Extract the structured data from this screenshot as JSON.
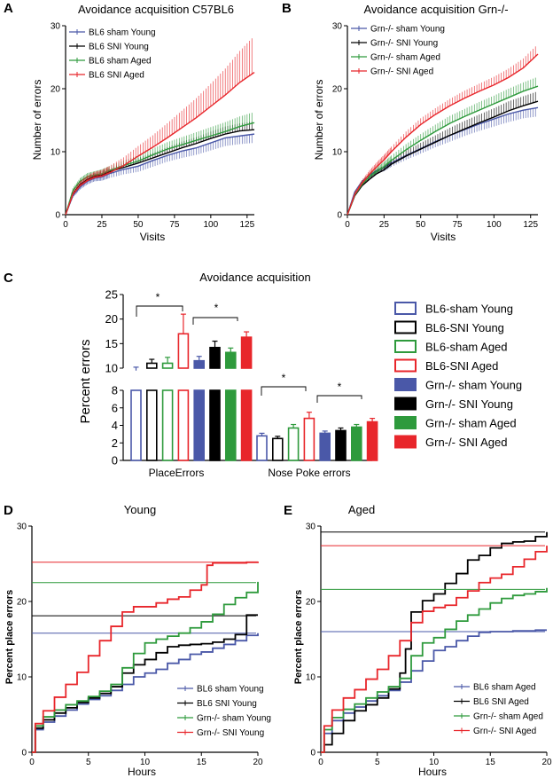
{
  "colors": {
    "blue": "#4a58a8",
    "black": "#000000",
    "green": "#2e9a3c",
    "red": "#e8262b"
  },
  "panels": {
    "A": {
      "letter": "A",
      "title": "Avoidance acquisition C57BL6",
      "xlabel": "Visits",
      "ylabel": "Number of errors",
      "xlim": [
        0,
        130
      ],
      "ylim": [
        0,
        30
      ],
      "xticks": [
        0,
        25,
        50,
        75,
        100,
        125
      ],
      "yticks": [
        0,
        10,
        20,
        30
      ],
      "series": [
        {
          "name": "BL6 sham Young",
          "color": "blue",
          "x": [
            0,
            5,
            10,
            15,
            20,
            25,
            30,
            40,
            50,
            60,
            70,
            80,
            90,
            100,
            110,
            120,
            130
          ],
          "y": [
            0,
            3,
            4.4,
            5.3,
            5.8,
            6,
            6.5,
            7.2,
            7.7,
            8.6,
            9.4,
            10.1,
            10.6,
            11.4,
            12.2,
            12.5,
            12.8
          ],
          "err": [
            0,
            0.3,
            0.4,
            0.5,
            0.5,
            0.6,
            0.7,
            0.8,
            0.9,
            1,
            1,
            1.1,
            1.1,
            1.2,
            1.3,
            1.3,
            1.4
          ]
        },
        {
          "name": "BL6 SNI Young",
          "color": "black",
          "x": [
            0,
            5,
            10,
            15,
            20,
            25,
            30,
            40,
            50,
            60,
            70,
            80,
            90,
            100,
            110,
            120,
            130
          ],
          "y": [
            0,
            3.3,
            4.8,
            5.6,
            6.1,
            6.3,
            6.8,
            7.5,
            8.2,
            9,
            9.8,
            10.6,
            11.3,
            12.1,
            12.8,
            13.3,
            13.5
          ],
          "err": [
            0,
            0.3,
            0.4,
            0.5,
            0.5,
            0.6,
            0.6,
            0.7,
            0.8,
            0.8,
            0.9,
            1,
            1,
            1.1,
            1.2,
            1.2,
            1.3
          ]
        },
        {
          "name": "BL6 sham Aged",
          "color": "green",
          "x": [
            0,
            5,
            10,
            15,
            20,
            25,
            30,
            40,
            50,
            60,
            70,
            80,
            90,
            100,
            110,
            120,
            130
          ],
          "y": [
            0,
            3.8,
            5.3,
            6,
            6.3,
            6.5,
            7,
            7.8,
            8.5,
            9.5,
            10.4,
            11.1,
            11.8,
            12.5,
            13.2,
            14,
            14.6
          ],
          "err": [
            0,
            0.4,
            0.5,
            0.6,
            0.6,
            0.7,
            0.7,
            0.8,
            0.9,
            1,
            1.1,
            1.2,
            1.3,
            1.4,
            1.5,
            1.6,
            1.7
          ]
        },
        {
          "name": "BL6 SNI Aged",
          "color": "red",
          "x": [
            0,
            5,
            10,
            15,
            20,
            25,
            30,
            40,
            50,
            60,
            70,
            80,
            90,
            100,
            110,
            120,
            130
          ],
          "y": [
            0,
            3.2,
            4.6,
            5.4,
            5.9,
            6.1,
            6.6,
            7.8,
            9.3,
            10.7,
            12.2,
            13.8,
            15.4,
            17.2,
            19,
            21,
            22.6
          ],
          "err": [
            0,
            0.5,
            0.7,
            0.8,
            0.9,
            1,
            1.1,
            1.3,
            1.6,
            1.9,
            2.3,
            2.7,
            3.1,
            3.6,
            4.2,
            5,
            5.8
          ]
        }
      ]
    },
    "B": {
      "letter": "B",
      "title": "Avoidance acquisition Grn-/-",
      "xlabel": "Visits",
      "ylabel": "Number of errors",
      "xlim": [
        0,
        130
      ],
      "ylim": [
        0,
        30
      ],
      "xticks": [
        0,
        25,
        50,
        75,
        100,
        125
      ],
      "yticks": [
        0,
        10,
        20,
        30
      ],
      "series": [
        {
          "name": "Grn-/- sham Young",
          "color": "blue",
          "x": [
            0,
            5,
            10,
            15,
            20,
            25,
            30,
            40,
            50,
            60,
            70,
            80,
            90,
            100,
            110,
            120,
            130
          ],
          "y": [
            0,
            3.6,
            5.3,
            6.3,
            7,
            7.5,
            8.2,
            9.4,
            10.5,
            11.6,
            12.6,
            13.5,
            14.4,
            15.2,
            16,
            16.6,
            17
          ],
          "err": [
            0,
            0.3,
            0.4,
            0.5,
            0.5,
            0.6,
            0.6,
            0.7,
            0.8,
            0.9,
            1,
            1,
            1.1,
            1.2,
            1.3,
            1.3,
            1.4
          ]
        },
        {
          "name": "Grn-/- SNI Young",
          "color": "black",
          "x": [
            0,
            5,
            10,
            15,
            20,
            25,
            30,
            40,
            50,
            60,
            70,
            80,
            90,
            100,
            110,
            120,
            130
          ],
          "y": [
            0,
            3,
            4.6,
            5.6,
            6.5,
            7.1,
            8,
            9.3,
            10.4,
            11.5,
            12.6,
            13.6,
            14.6,
            15.5,
            16.5,
            17.3,
            18
          ],
          "err": [
            0,
            0.4,
            0.5,
            0.6,
            0.7,
            0.7,
            0.8,
            0.9,
            1,
            1.1,
            1.2,
            1.3,
            1.3,
            1.4,
            1.5,
            1.5,
            1.6
          ]
        },
        {
          "name": "Grn-/- sham Aged",
          "color": "green",
          "x": [
            0,
            5,
            10,
            15,
            20,
            25,
            30,
            40,
            50,
            60,
            70,
            80,
            90,
            100,
            110,
            120,
            130
          ],
          "y": [
            0,
            3.1,
            4.8,
            6,
            6.8,
            7.6,
            8.6,
            10.3,
            11.8,
            13.2,
            14.5,
            15.6,
            16.6,
            17.6,
            18.6,
            19.6,
            20.4
          ],
          "err": [
            0,
            0.4,
            0.5,
            0.6,
            0.7,
            0.8,
            0.8,
            0.9,
            1,
            1.1,
            1.2,
            1.2,
            1.3,
            1.3,
            1.4,
            1.4,
            1.5
          ]
        },
        {
          "name": "Grn-/- SNI Aged",
          "color": "red",
          "x": [
            0,
            5,
            10,
            15,
            20,
            25,
            30,
            40,
            50,
            60,
            70,
            80,
            90,
            100,
            110,
            120,
            130
          ],
          "y": [
            0,
            3.2,
            5,
            6.4,
            7.6,
            8.7,
            10,
            12.3,
            14.3,
            15.9,
            17.3,
            18.5,
            19.6,
            20.6,
            21.8,
            23.3,
            25.5
          ],
          "err": [
            0,
            0.4,
            0.5,
            0.6,
            0.7,
            0.8,
            0.8,
            0.9,
            1,
            1,
            1.1,
            1.2,
            1.2,
            1.3,
            1.4,
            1.5,
            1.6
          ]
        }
      ]
    },
    "C": {
      "letter": "C",
      "title": "Avoidance acquisition",
      "ylabel": "Percent errors",
      "groups": [
        "PlaceErrors",
        "Nose Poke errors"
      ],
      "yticks_upper": [
        10,
        15,
        20,
        25
      ],
      "yticks_lower": [
        0,
        2,
        4,
        6,
        8
      ],
      "sig": "*",
      "series": [
        {
          "name": "BL6-sham Young",
          "color": "blue",
          "filled": false,
          "values": [
            9.5,
            2.8
          ],
          "err": [
            0.7,
            0.3
          ]
        },
        {
          "name": "BL6-SNI Young",
          "color": "black",
          "filled": false,
          "values": [
            11,
            2.5
          ],
          "err": [
            0.8,
            0.25
          ]
        },
        {
          "name": "BL6-sham Aged",
          "color": "green",
          "filled": false,
          "values": [
            11,
            3.7
          ],
          "err": [
            1.2,
            0.4
          ]
        },
        {
          "name": "BL6-SNI Aged",
          "color": "red",
          "filled": false,
          "values": [
            17,
            4.8
          ],
          "err": [
            4,
            0.7
          ]
        },
        {
          "name": "Grn-/- sham Young",
          "color": "blue",
          "filled": true,
          "values": [
            11.5,
            3.1
          ],
          "err": [
            0.9,
            0.25
          ]
        },
        {
          "name": "Grn-/- SNI Young",
          "color": "black",
          "filled": true,
          "values": [
            14.2,
            3.4
          ],
          "err": [
            1.3,
            0.3
          ]
        },
        {
          "name": "Grn-/- sham Aged",
          "color": "green",
          "filled": true,
          "values": [
            13.2,
            3.8
          ],
          "err": [
            0.9,
            0.3
          ]
        },
        {
          "name": "Grn-/- SNI Aged",
          "color": "red",
          "filled": true,
          "values": [
            16.3,
            4.4
          ],
          "err": [
            1.1,
            0.4
          ]
        }
      ]
    },
    "D": {
      "letter": "D",
      "title": "Young",
      "xlabel": "Hours",
      "ylabel": "Percent place errors",
      "xlim": [
        0,
        20
      ],
      "ylim": [
        0,
        30
      ],
      "xticks": [
        0,
        5,
        10,
        15,
        20
      ],
      "yticks": [
        0,
        10,
        20,
        30
      ],
      "series": [
        {
          "name": "BL6 sham Young",
          "color": "blue",
          "x": [
            0,
            0.3,
            1,
            2,
            3,
            4,
            5,
            6,
            7,
            8,
            9,
            10,
            11,
            12,
            13,
            14,
            15,
            16,
            17,
            18,
            19,
            20
          ],
          "y": [
            0,
            3,
            4,
            4.8,
            5.6,
            6.4,
            7,
            7.5,
            8.2,
            9,
            10,
            10.5,
            11,
            11.8,
            12.3,
            13,
            13.3,
            13.8,
            14.3,
            14.8,
            15.5,
            15.8
          ],
          "plateau": 15.8
        },
        {
          "name": "BL6 SNI Young",
          "color": "black",
          "x": [
            0,
            0.3,
            1,
            2,
            3,
            4,
            5,
            6,
            7,
            8,
            9,
            10,
            11,
            12,
            13,
            14,
            15,
            16,
            17,
            18,
            19,
            20
          ],
          "y": [
            0,
            3.2,
            4.3,
            5.2,
            5.9,
            6.6,
            7.2,
            7.8,
            8.7,
            10.5,
            11.6,
            12.3,
            13.2,
            14,
            14.2,
            14.3,
            14.4,
            14.6,
            15,
            15.6,
            18.2,
            18.2
          ],
          "plateau": 18.1
        },
        {
          "name": "Grn-/- sham Young",
          "color": "green",
          "x": [
            0,
            0.3,
            1,
            2,
            3,
            4,
            5,
            6,
            7,
            8,
            9,
            10,
            11,
            12,
            13,
            14,
            15,
            16,
            17,
            18,
            19,
            20
          ],
          "y": [
            0,
            3.5,
            4.7,
            5.6,
            6.3,
            6.8,
            7.4,
            8.1,
            9,
            11.2,
            13.1,
            14.5,
            15,
            15.4,
            15.8,
            16.5,
            17.3,
            18.3,
            19.6,
            20.5,
            21.2,
            22.6
          ],
          "plateau": 22.5
        },
        {
          "name": "Grn-/- SNI Young",
          "color": "red",
          "x": [
            0,
            0.3,
            1,
            2,
            3,
            4,
            5,
            6,
            7,
            8,
            9,
            10,
            11,
            12,
            13,
            14,
            15,
            15.5,
            16,
            17,
            18,
            19,
            20
          ],
          "y": [
            0,
            3.8,
            5.5,
            7.3,
            9,
            10.6,
            12.8,
            14.8,
            16.7,
            18.6,
            19.3,
            19.3,
            19.8,
            20.3,
            20.6,
            21.5,
            22.2,
            24.8,
            25.1,
            25.1,
            25.1,
            25.2,
            25.3
          ],
          "plateau": 25.2
        }
      ]
    },
    "E": {
      "letter": "E",
      "title": "Aged",
      "xlabel": "Hours",
      "ylabel": "Percent place errors",
      "xlim": [
        0,
        20
      ],
      "ylim": [
        0,
        30
      ],
      "xticks": [
        0,
        5,
        10,
        15,
        20
      ],
      "yticks": [
        0,
        10,
        20,
        30
      ],
      "series": [
        {
          "name": "BL6 sham Aged",
          "color": "blue",
          "x": [
            0,
            0.3,
            1,
            2,
            3,
            4,
            5,
            6,
            7,
            8,
            9,
            10,
            11,
            12,
            13,
            14,
            15,
            16,
            17,
            18,
            19,
            20
          ],
          "y": [
            0,
            2.5,
            4.2,
            5.2,
            6,
            6.8,
            7.5,
            8.2,
            9.3,
            10.8,
            12.1,
            13.5,
            14,
            14.8,
            15.4,
            15.9,
            16,
            16,
            16.1,
            16.1,
            16.2,
            16.2
          ],
          "plateau": 16
        },
        {
          "name": "BL6 SNI Aged",
          "color": "black",
          "x": [
            0,
            0.3,
            1,
            2,
            3,
            4,
            5,
            6,
            7,
            7.5,
            8,
            9,
            10,
            11,
            12,
            13,
            14,
            15,
            16,
            17,
            18,
            19,
            20
          ],
          "y": [
            0,
            1,
            2.5,
            4.2,
            5.5,
            6.3,
            7.2,
            8.4,
            10.5,
            13.7,
            18.6,
            20.1,
            21,
            22.4,
            23.7,
            25.5,
            26.1,
            27.1,
            27.7,
            27.9,
            28,
            28.6,
            29.2
          ],
          "plateau": 29.2
        },
        {
          "name": "Grn-/- sham Aged",
          "color": "green",
          "x": [
            0,
            0.3,
            1,
            2,
            3,
            4,
            5,
            6,
            7,
            8,
            9,
            10,
            11,
            12,
            13,
            14,
            15,
            16,
            17,
            18,
            19,
            20
          ],
          "y": [
            0,
            3,
            4.6,
            5.7,
            6.4,
            7.2,
            8,
            8.7,
            9.8,
            12.8,
            14.5,
            15.2,
            16.3,
            17.4,
            18.2,
            19,
            19.8,
            20.4,
            20.8,
            21,
            21.3,
            21.8
          ],
          "plateau": 21.6
        },
        {
          "name": "Grn-/- SNI Aged",
          "color": "red",
          "x": [
            0,
            0.3,
            1,
            2,
            3,
            4,
            5,
            6,
            7,
            8,
            9,
            10,
            11,
            12,
            13,
            14,
            15,
            16,
            17,
            18,
            19,
            20
          ],
          "y": [
            0,
            3.5,
            5.6,
            7.2,
            8.3,
            9.7,
            11,
            12.8,
            14.8,
            17.2,
            18.7,
            19.2,
            19.5,
            20.5,
            21.4,
            22.5,
            23.1,
            23.6,
            24.6,
            25.6,
            26.6,
            27.4
          ],
          "plateau": 27.4
        }
      ]
    }
  }
}
